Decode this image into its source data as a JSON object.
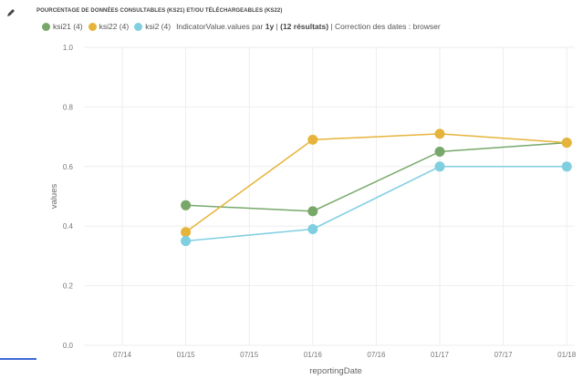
{
  "header": {
    "title": "POURCENTAGE DE DONNÉES CONSULTABLES (KS21) ET/OU TÉLÉCHARGEABLES (KS22)",
    "info_prefix": "IndicatorValue.values par ",
    "info_bold1": "1y",
    "info_mid": " | ",
    "info_bold2": "(12 résultats)",
    "info_suffix": " | Correction des dates : browser"
  },
  "icons": {
    "edit": "pencil-icon"
  },
  "legend": [
    {
      "label": "ksi21 (4)",
      "color": "#77a86a"
    },
    {
      "label": "ksi22 (4)",
      "color": "#e6b43a"
    },
    {
      "label": "ksi2 (4)",
      "color": "#7fcfe0"
    }
  ],
  "chart_data": {
    "type": "line",
    "xlabel": "reportingDate",
    "ylabel": "values",
    "x_ticks": [
      "07/14",
      "01/15",
      "07/15",
      "01/16",
      "07/16",
      "01/17",
      "07/17",
      "01/18"
    ],
    "y_ticks": [
      "0.0",
      "0.2",
      "0.4",
      "0.6",
      "0.8",
      "1.0"
    ],
    "ylim": [
      0,
      1
    ],
    "grid": true,
    "legend_position": "top-left",
    "x": [
      "01/15",
      "01/16",
      "01/17",
      "01/18"
    ],
    "series": [
      {
        "name": "ksi21 (4)",
        "color": "#77a86a",
        "values": [
          0.47,
          0.45,
          0.65,
          0.68
        ]
      },
      {
        "name": "ksi22 (4)",
        "color": "#e6b43a",
        "values": [
          0.38,
          0.69,
          0.71,
          0.68
        ]
      },
      {
        "name": "ksi2 (4)",
        "color": "#7fcfe0",
        "values": [
          0.35,
          0.39,
          0.6,
          0.6
        ]
      }
    ]
  }
}
